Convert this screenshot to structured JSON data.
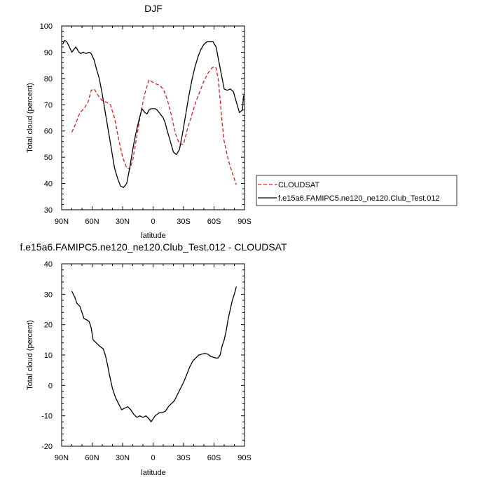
{
  "chart_data": [
    {
      "type": "line",
      "title": "DJF",
      "xlabel": "latitude",
      "ylabel": "Total cloud (percent)",
      "xlim": [
        90,
        -90
      ],
      "ylim": [
        30,
        100
      ],
      "yticks": [
        30,
        40,
        50,
        60,
        70,
        80,
        90,
        100
      ],
      "xticks": [
        90,
        60,
        30,
        0,
        -30,
        -60,
        -90
      ],
      "xtick_labels": [
        "90N",
        "60N",
        "30N",
        "0",
        "30S",
        "60S",
        "90S"
      ],
      "grid": false,
      "legend": "right",
      "series": [
        {
          "name": "CLOUDSAT",
          "color": "#e41a1c",
          "dash": "dashed",
          "x": [
            80,
            76,
            72,
            68,
            64,
            61,
            58,
            54,
            50,
            46,
            42,
            38,
            34,
            30,
            26,
            23,
            20,
            16,
            12,
            8,
            6,
            4,
            2,
            0,
            -2,
            -6,
            -10,
            -14,
            -18,
            -22,
            -26,
            -30,
            -34,
            -38,
            -42,
            -46,
            -50,
            -54,
            -58,
            -60,
            -62,
            -64,
            -66,
            -68,
            -70,
            -74,
            -78,
            -82
          ],
          "y": [
            59.5,
            63,
            67,
            68.5,
            71,
            75.5,
            76,
            73.5,
            71.5,
            71,
            70,
            65,
            57,
            50,
            46,
            45.5,
            49,
            58,
            67,
            74.5,
            77,
            79.5,
            79,
            78.5,
            78,
            77.5,
            76,
            72,
            66,
            59,
            55,
            55,
            61,
            66,
            71,
            75,
            79,
            82,
            84,
            84.5,
            84,
            80,
            72,
            63,
            56,
            49,
            44,
            39.5
          ]
        },
        {
          "name": "f.e15a6.FAMIPC5.ne120_ne120.Club_Test.012",
          "color": "#000000",
          "dash": "solid",
          "x": [
            89,
            87,
            85,
            83,
            80,
            78,
            76,
            73,
            71,
            69,
            66,
            63,
            61,
            58,
            56,
            53,
            50,
            47,
            44,
            41,
            38,
            35,
            32,
            29,
            26,
            23,
            20,
            17,
            14,
            11,
            8,
            6,
            4,
            2,
            0,
            -2,
            -4,
            -6,
            -8,
            -10,
            -12,
            -14,
            -17,
            -20,
            -23,
            -26,
            -29,
            -32,
            -35,
            -38,
            -41,
            -44,
            -47,
            -50,
            -53,
            -56,
            -59,
            -62,
            -64,
            -66,
            -68,
            -70,
            -73,
            -76,
            -79,
            -82,
            -85,
            -88,
            -89
          ],
          "y": [
            93,
            94.5,
            94,
            92.5,
            90,
            91,
            92,
            90,
            89.5,
            90,
            89.5,
            90,
            89.5,
            87,
            84,
            80,
            74,
            67,
            60,
            53,
            46,
            42,
            39,
            38.5,
            40,
            46,
            53,
            59,
            64,
            68.5,
            67,
            66.5,
            68,
            68.5,
            68.5,
            68.5,
            68,
            67,
            66,
            65,
            63,
            60,
            56,
            52,
            51,
            53,
            59,
            66,
            73,
            79,
            84,
            88,
            91,
            93,
            94,
            94,
            94,
            92,
            88,
            84,
            80,
            76,
            75.5,
            76,
            75,
            71,
            67,
            68,
            73.5
          ]
        }
      ]
    },
    {
      "type": "line",
      "title": "f.e15a6.FAMIPC5.ne120_ne120.Club_Test.012 - CLOUDSAT",
      "xlabel": "latitude",
      "ylabel": "Total cloud (percent)",
      "xlim": [
        90,
        -90
      ],
      "ylim": [
        -20,
        40
      ],
      "yticks": [
        -20,
        -10,
        0,
        10,
        20,
        30,
        40
      ],
      "xticks": [
        90,
        60,
        30,
        0,
        -30,
        -60,
        -90
      ],
      "xtick_labels": [
        "90N",
        "60N",
        "30N",
        "0",
        "30S",
        "60S",
        "90S"
      ],
      "grid": false,
      "series": [
        {
          "color": "#000000",
          "dash": "solid",
          "x": [
            80,
            77,
            75,
            72,
            70,
            68,
            65,
            63,
            61,
            59,
            56,
            53,
            51,
            49,
            47,
            45,
            43,
            40,
            37,
            34,
            31,
            28,
            25,
            22,
            19,
            16,
            13,
            10,
            7,
            4,
            2,
            0,
            -2,
            -4,
            -6,
            -9,
            -12,
            -15,
            -18,
            -21,
            -24,
            -27,
            -30,
            -33,
            -36,
            -39,
            -42,
            -45,
            -48,
            -51,
            -54,
            -57,
            -60,
            -62,
            -64,
            -66,
            -68,
            -70,
            -72,
            -74,
            -76,
            -78,
            -80,
            -82
          ],
          "y": [
            31,
            29,
            27,
            26,
            24,
            22,
            21.5,
            21,
            19,
            15,
            14,
            13,
            12.5,
            12,
            10,
            7,
            3.5,
            -1,
            -4,
            -6,
            -8,
            -7.5,
            -7,
            -8,
            -9.5,
            -10.5,
            -10,
            -10.5,
            -10,
            -11,
            -12,
            -11,
            -10,
            -9.5,
            -9,
            -9,
            -8.5,
            -7,
            -6,
            -5,
            -3,
            -1,
            1,
            3.5,
            6,
            8,
            9,
            10,
            10.3,
            10.5,
            10.3,
            9.5,
            9.2,
            9,
            9,
            10,
            13,
            15,
            18,
            22,
            25,
            28,
            30,
            32.5
          ]
        }
      ]
    }
  ]
}
